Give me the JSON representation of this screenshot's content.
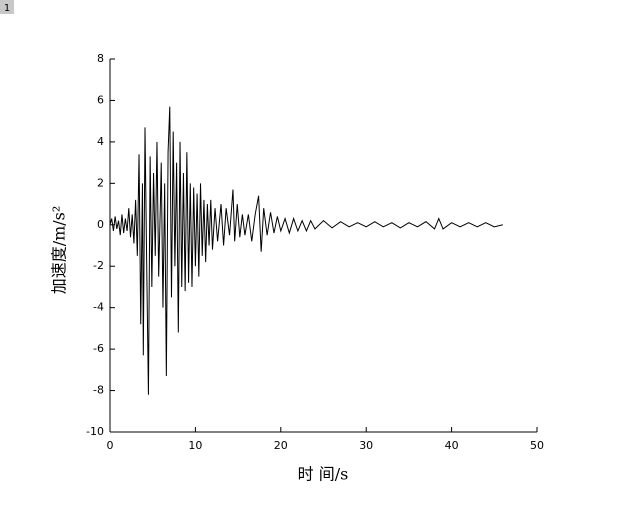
{
  "panel_label": "1",
  "chart_data": {
    "type": "line",
    "xlabel": "时 间/s",
    "ylabel": "加速度/m/s²",
    "xlim": [
      0,
      50
    ],
    "xticks": [
      0,
      10,
      20,
      30,
      40,
      50
    ],
    "ylim": [
      -10,
      8
    ],
    "yticks": [
      -10,
      -8,
      -6,
      -4,
      -2,
      0,
      2,
      4,
      6,
      8
    ],
    "series": [
      {
        "name": "acceleration",
        "color": "#000000",
        "x": [
          0,
          0.2,
          0.4,
          0.6,
          0.8,
          1.0,
          1.2,
          1.4,
          1.6,
          1.8,
          2.0,
          2.2,
          2.4,
          2.6,
          2.8,
          3.0,
          3.2,
          3.4,
          3.6,
          3.8,
          3.9,
          4.1,
          4.3,
          4.5,
          4.7,
          4.9,
          5.1,
          5.3,
          5.5,
          5.7,
          5.9,
          6.0,
          6.2,
          6.4,
          6.6,
          6.8,
          7.0,
          7.2,
          7.4,
          7.6,
          7.8,
          8.0,
          8.2,
          8.4,
          8.6,
          8.8,
          9.0,
          9.2,
          9.4,
          9.6,
          9.8,
          10.0,
          10.2,
          10.4,
          10.6,
          10.8,
          11.0,
          11.2,
          11.4,
          11.6,
          11.8,
          12.0,
          12.3,
          12.6,
          13.0,
          13.3,
          13.6,
          14.0,
          14.4,
          14.6,
          14.9,
          15.2,
          15.5,
          15.8,
          16.2,
          16.6,
          17.0,
          17.4,
          17.7,
          18.0,
          18.4,
          18.8,
          19.2,
          19.6,
          20,
          20.5,
          21,
          21.5,
          22,
          22.5,
          23,
          23.5,
          24,
          25,
          26,
          27,
          28,
          29,
          30,
          31,
          32,
          33,
          34,
          35,
          36,
          37,
          38,
          38.5,
          39,
          40,
          41,
          42,
          43,
          44,
          45,
          46
        ],
        "values": [
          0,
          0.3,
          -0.3,
          0.4,
          -0.2,
          0.2,
          -0.5,
          0.5,
          -0.4,
          0.3,
          -0.3,
          0.8,
          -0.6,
          0.5,
          -0.9,
          1.2,
          -1.5,
          3.4,
          -4.8,
          2.0,
          -6.3,
          4.7,
          -2.0,
          -8.2,
          3.3,
          -3.0,
          2.5,
          -1.5,
          4.0,
          -2.5,
          1.0,
          3.0,
          -4.0,
          2.0,
          -7.3,
          3.5,
          5.7,
          -3.5,
          4.5,
          -2.0,
          3.0,
          -5.2,
          4.0,
          -3.0,
          2.5,
          -3.2,
          3.5,
          -2.8,
          2.0,
          -3.0,
          1.8,
          -2.0,
          1.5,
          -2.5,
          2.0,
          -1.5,
          1.2,
          -1.8,
          1.0,
          -1.0,
          1.2,
          -1.2,
          0.8,
          -0.8,
          1.0,
          -1.0,
          0.8,
          -0.5,
          1.7,
          -0.8,
          1.0,
          -0.6,
          0.5,
          -0.5,
          0.5,
          -0.8,
          0.5,
          1.4,
          -1.3,
          0.8,
          -0.5,
          0.6,
          -0.4,
          0.4,
          -0.3,
          0.3,
          -0.4,
          0.3,
          -0.3,
          0.2,
          -0.3,
          0.2,
          -0.2,
          0.2,
          -0.15,
          0.15,
          -0.1,
          0.1,
          -0.1,
          0.15,
          -0.1,
          0.1,
          -0.15,
          0.1,
          -0.1,
          0.15,
          -0.2,
          0.3,
          -0.2,
          0.1,
          -0.1,
          0.1,
          -0.1,
          0.1,
          -0.1,
          0
        ]
      }
    ]
  }
}
